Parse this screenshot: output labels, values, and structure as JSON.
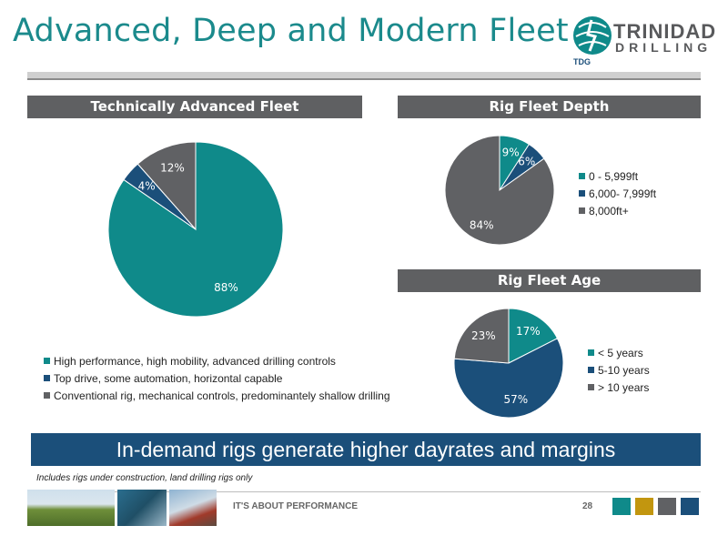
{
  "slide": {
    "title": "Advanced, Deep and Modern Fleet",
    "logo": {
      "line1": "TRINIDAD",
      "line2": "DRILLING",
      "badge": "TDG"
    },
    "banner": "In-demand rigs generate higher dayrates and margins",
    "footnote": "Includes rigs under construction, land drilling rigs only",
    "tagline": "IT'S ABOUT PERFORMANCE",
    "page_number": "28",
    "footer_square_colors": [
      "#0f8a8a",
      "#c2960f",
      "#606164",
      "#1b4f7a"
    ]
  },
  "chart_data": [
    {
      "type": "pie",
      "title": "Technically Advanced Fleet",
      "slices": [
        {
          "label": "High performance, high mobility, advanced drilling controls",
          "value": 88,
          "display": "88%",
          "color": "#0f8a8a"
        },
        {
          "label": "Top drive, some automation, horizontal capable",
          "value": 4,
          "display": "4%",
          "color": "#1b4f7a"
        },
        {
          "label": "Conventional rig, mechanical controls, predominantely shallow drilling",
          "value": 12,
          "display": "12%",
          "color": "#606164"
        }
      ],
      "legend_position": "bottom"
    },
    {
      "type": "pie",
      "title": "Rig Fleet Depth",
      "slices": [
        {
          "label": "0 - 5,999ft",
          "value": 9,
          "display": "9%",
          "color": "#0f8a8a"
        },
        {
          "label": "6,000- 7,999ft",
          "value": 6,
          "display": "6%",
          "color": "#1b4f7a"
        },
        {
          "label": "8,000ft+",
          "value": 84,
          "display": "84%",
          "color": "#606164"
        }
      ],
      "legend_position": "right"
    },
    {
      "type": "pie",
      "title": "Rig Fleet Age",
      "slices": [
        {
          "label": "< 5 years",
          "value": 17,
          "display": "17%",
          "color": "#0f8a8a"
        },
        {
          "label": "5-10 years",
          "value": 57,
          "display": "57%",
          "color": "#1b4f7a"
        },
        {
          "label": "> 10 years",
          "value": 23,
          "display": "23%",
          "color": "#606164"
        }
      ],
      "legend_position": "right"
    }
  ]
}
